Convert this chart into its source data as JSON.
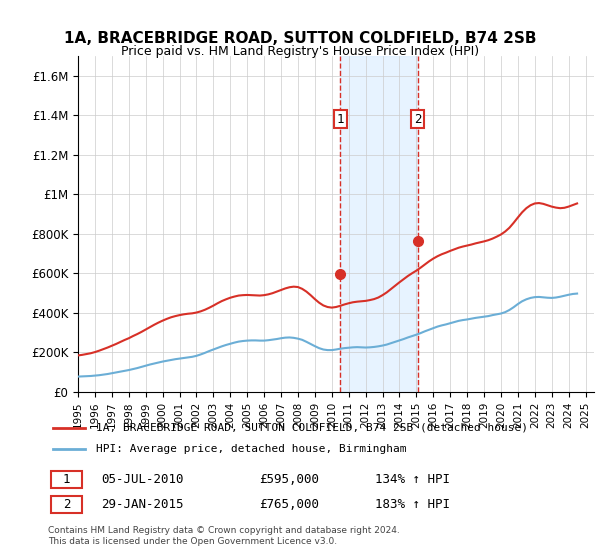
{
  "title": "1A, BRACEBRIDGE ROAD, SUTTON COLDFIELD, B74 2SB",
  "subtitle": "Price paid vs. HM Land Registry's House Price Index (HPI)",
  "xlabel": "",
  "ylabel": "",
  "ylim": [
    0,
    1700000
  ],
  "yticks": [
    0,
    200000,
    400000,
    600000,
    800000,
    1000000,
    1200000,
    1400000,
    1600000
  ],
  "ytick_labels": [
    "£0",
    "£200K",
    "£400K",
    "£600K",
    "£800K",
    "£1M",
    "£1.2M",
    "£1.4M",
    "£1.6M"
  ],
  "xlim_start": 1995.0,
  "xlim_end": 2025.5,
  "xtick_years": [
    1995,
    1996,
    1997,
    1998,
    1999,
    2000,
    2001,
    2002,
    2003,
    2004,
    2005,
    2006,
    2007,
    2008,
    2009,
    2010,
    2011,
    2012,
    2013,
    2014,
    2015,
    2016,
    2017,
    2018,
    2019,
    2020,
    2021,
    2022,
    2023,
    2024,
    2025
  ],
  "hpi_color": "#6baed6",
  "price_color": "#d73027",
  "sale1_x": 2010.51,
  "sale1_y": 595000,
  "sale2_x": 2015.08,
  "sale2_y": 765000,
  "sale1_label": "1",
  "sale2_label": "2",
  "legend_line1": "1A, BRACEBRIDGE ROAD, SUTTON COLDFIELD, B74 2SB (detached house)",
  "legend_line2": "HPI: Average price, detached house, Birmingham",
  "table_row1": "1    05-JUL-2010         £595,000         134% ↑ HPI",
  "table_row2": "2    29-JAN-2015         £765,000         183% ↑ HPI",
  "footer": "Contains HM Land Registry data © Crown copyright and database right 2024.\nThis data is licensed under the Open Government Licence v3.0.",
  "shaded_x1": 2010.51,
  "shaded_x2": 2015.08,
  "hpi_data_x": [
    1995.0,
    1995.25,
    1995.5,
    1995.75,
    1996.0,
    1996.25,
    1996.5,
    1996.75,
    1997.0,
    1997.25,
    1997.5,
    1997.75,
    1998.0,
    1998.25,
    1998.5,
    1998.75,
    1999.0,
    1999.25,
    1999.5,
    1999.75,
    2000.0,
    2000.25,
    2000.5,
    2000.75,
    2001.0,
    2001.25,
    2001.5,
    2001.75,
    2002.0,
    2002.25,
    2002.5,
    2002.75,
    2003.0,
    2003.25,
    2003.5,
    2003.75,
    2004.0,
    2004.25,
    2004.5,
    2004.75,
    2005.0,
    2005.25,
    2005.5,
    2005.75,
    2006.0,
    2006.25,
    2006.5,
    2006.75,
    2007.0,
    2007.25,
    2007.5,
    2007.75,
    2008.0,
    2008.25,
    2008.5,
    2008.75,
    2009.0,
    2009.25,
    2009.5,
    2009.75,
    2010.0,
    2010.25,
    2010.5,
    2010.75,
    2011.0,
    2011.25,
    2011.5,
    2011.75,
    2012.0,
    2012.25,
    2012.5,
    2012.75,
    2013.0,
    2013.25,
    2013.5,
    2013.75,
    2014.0,
    2014.25,
    2014.5,
    2014.75,
    2015.0,
    2015.25,
    2015.5,
    2015.75,
    2016.0,
    2016.25,
    2016.5,
    2016.75,
    2017.0,
    2017.25,
    2017.5,
    2017.75,
    2018.0,
    2018.25,
    2018.5,
    2018.75,
    2019.0,
    2019.25,
    2019.5,
    2019.75,
    2020.0,
    2020.25,
    2020.5,
    2020.75,
    2021.0,
    2021.25,
    2021.5,
    2021.75,
    2022.0,
    2022.25,
    2022.5,
    2022.75,
    2023.0,
    2023.25,
    2023.5,
    2023.75,
    2024.0,
    2024.25,
    2024.5
  ],
  "hpi_data_y": [
    78000,
    79000,
    80000,
    81000,
    83000,
    85000,
    88000,
    91000,
    95000,
    99000,
    103000,
    107000,
    111000,
    116000,
    121000,
    127000,
    133000,
    139000,
    144000,
    149000,
    154000,
    158000,
    162000,
    166000,
    169000,
    172000,
    175000,
    178000,
    183000,
    190000,
    198000,
    207000,
    215000,
    223000,
    231000,
    238000,
    244000,
    250000,
    255000,
    258000,
    260000,
    261000,
    261000,
    260000,
    260000,
    262000,
    265000,
    268000,
    272000,
    275000,
    276000,
    274000,
    270000,
    264000,
    254000,
    243000,
    232000,
    222000,
    215000,
    212000,
    212000,
    215000,
    219000,
    222000,
    224000,
    226000,
    227000,
    226000,
    225000,
    226000,
    228000,
    231000,
    235000,
    240000,
    247000,
    254000,
    261000,
    268000,
    276000,
    283000,
    290000,
    298000,
    307000,
    315000,
    323000,
    331000,
    337000,
    342000,
    348000,
    354000,
    360000,
    364000,
    367000,
    371000,
    375000,
    378000,
    381000,
    384000,
    389000,
    393000,
    397000,
    404000,
    415000,
    429000,
    445000,
    459000,
    469000,
    476000,
    480000,
    481000,
    479000,
    477000,
    476000,
    478000,
    482000,
    487000,
    492000,
    496000,
    498000
  ],
  "price_data_x": [
    1995.0,
    1995.25,
    1995.5,
    1995.75,
    1996.0,
    1996.25,
    1996.5,
    1996.75,
    1997.0,
    1997.25,
    1997.5,
    1997.75,
    1998.0,
    1998.25,
    1998.5,
    1998.75,
    1999.0,
    1999.25,
    1999.5,
    1999.75,
    2000.0,
    2000.25,
    2000.5,
    2000.75,
    2001.0,
    2001.25,
    2001.5,
    2001.75,
    2002.0,
    2002.25,
    2002.5,
    2002.75,
    2003.0,
    2003.25,
    2003.5,
    2003.75,
    2004.0,
    2004.25,
    2004.5,
    2004.75,
    2005.0,
    2005.25,
    2005.5,
    2005.75,
    2006.0,
    2006.25,
    2006.5,
    2006.75,
    2007.0,
    2007.25,
    2007.5,
    2007.75,
    2008.0,
    2008.25,
    2008.5,
    2008.75,
    2009.0,
    2009.25,
    2009.5,
    2009.75,
    2010.0,
    2010.25,
    2010.5,
    2010.75,
    2011.0,
    2011.25,
    2011.5,
    2011.75,
    2012.0,
    2012.25,
    2012.5,
    2012.75,
    2013.0,
    2013.25,
    2013.5,
    2013.75,
    2014.0,
    2014.25,
    2014.5,
    2014.75,
    2015.0,
    2015.25,
    2015.5,
    2015.75,
    2016.0,
    2016.25,
    2016.5,
    2016.75,
    2017.0,
    2017.25,
    2017.5,
    2017.75,
    2018.0,
    2018.25,
    2018.5,
    2018.75,
    2019.0,
    2019.25,
    2019.5,
    2019.75,
    2020.0,
    2020.25,
    2020.5,
    2020.75,
    2021.0,
    2021.25,
    2021.5,
    2021.75,
    2022.0,
    2022.25,
    2022.5,
    2022.75,
    2023.0,
    2023.25,
    2023.5,
    2023.75,
    2024.0,
    2024.25,
    2024.5
  ],
  "price_data_y": [
    185000,
    188000,
    192000,
    196000,
    202000,
    209000,
    217000,
    225000,
    234000,
    243000,
    253000,
    263000,
    272000,
    283000,
    293000,
    304000,
    316000,
    328000,
    340000,
    351000,
    361000,
    370000,
    378000,
    384000,
    389000,
    393000,
    396000,
    398000,
    402000,
    408000,
    416000,
    426000,
    437000,
    449000,
    460000,
    469000,
    477000,
    483000,
    488000,
    490000,
    491000,
    490000,
    489000,
    488000,
    490000,
    494000,
    500000,
    508000,
    516000,
    524000,
    530000,
    533000,
    531000,
    522000,
    508000,
    490000,
    470000,
    452000,
    438000,
    430000,
    427000,
    430000,
    436000,
    443000,
    449000,
    454000,
    457000,
    459000,
    461000,
    465000,
    470000,
    478000,
    490000,
    504000,
    521000,
    538000,
    555000,
    571000,
    587000,
    601000,
    614000,
    629000,
    645000,
    661000,
    675000,
    687000,
    697000,
    705000,
    714000,
    722000,
    730000,
    736000,
    741000,
    746000,
    752000,
    757000,
    762000,
    768000,
    776000,
    786000,
    797000,
    812000,
    831000,
    856000,
    883000,
    909000,
    930000,
    945000,
    954000,
    956000,
    952000,
    945000,
    938000,
    933000,
    930000,
    932000,
    938000,
    946000,
    954000
  ]
}
